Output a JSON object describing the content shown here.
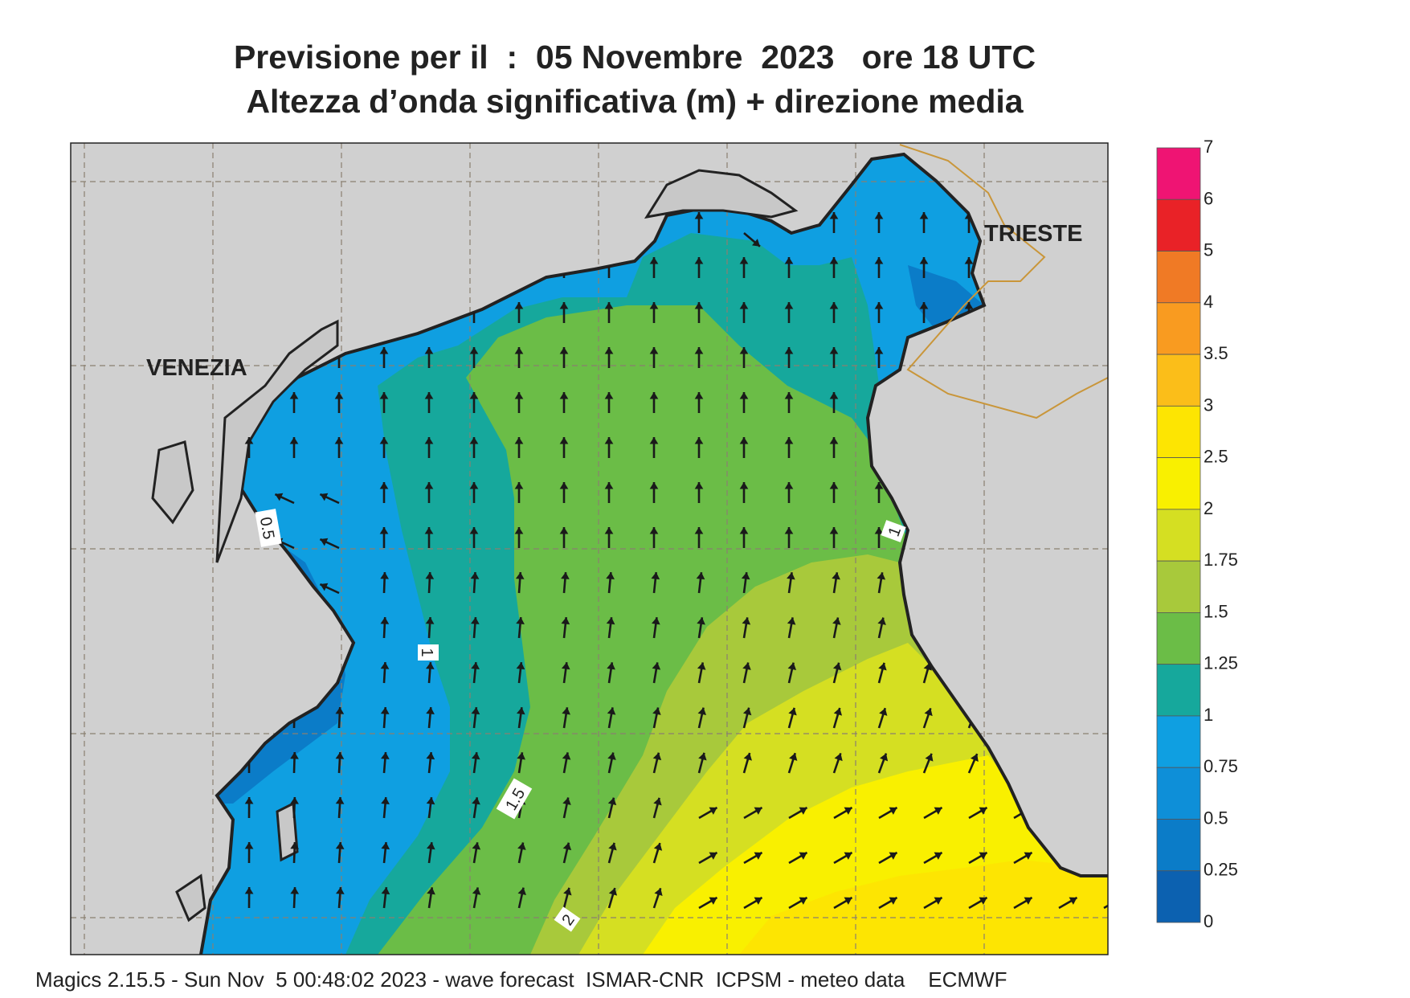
{
  "title_line1": "Previsione per il  :  05 Novembre  2023   ore 18 UTC",
  "title_line2": "Altezza d’onda significativa (m) + direzione media",
  "city_labels": [
    "VENEZIA",
    "TRIESTE"
  ],
  "contour_labels": [
    "0.5",
    "1",
    "1",
    "1.5",
    "2"
  ],
  "colorbar": {
    "ticks": [
      "7",
      "6",
      "5",
      "4",
      "3.5",
      "3",
      "2.5",
      "2",
      "1.75",
      "1.5",
      "1.25",
      "1",
      "0.75",
      "0.5",
      "0.25",
      "0"
    ],
    "colors": [
      "#ef1473",
      "#e92227",
      "#f07a25",
      "#f99b20",
      "#fbbe19",
      "#fde502",
      "#f9f000",
      "#d5df22",
      "#a8c93b",
      "#6bbd47",
      "#16a89c",
      "#0f9fe1",
      "#0e8fd8",
      "#0b7cc8",
      "#0c61b0"
    ]
  },
  "footer": "Magics 2.15.5 - Sun Nov  5 00:48:02 2023 - wave forecast  ISMAR-CNR  ICPSM - meteo data    ECMWF"
}
